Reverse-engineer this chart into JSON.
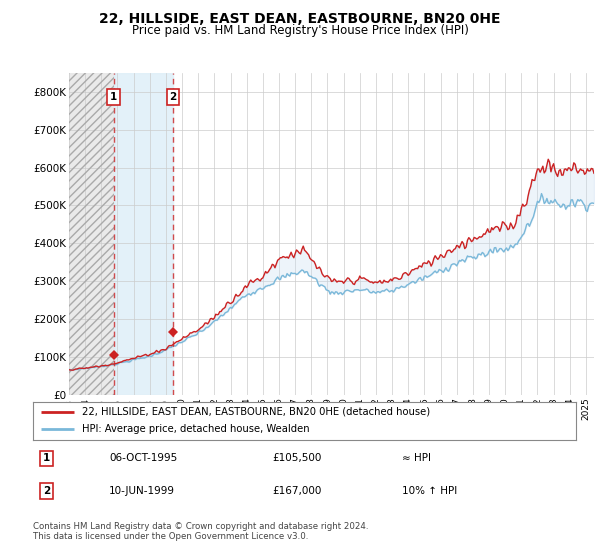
{
  "title": "22, HILLSIDE, EAST DEAN, EASTBOURNE, BN20 0HE",
  "subtitle": "Price paid vs. HM Land Registry's House Price Index (HPI)",
  "legend_line1": "22, HILLSIDE, EAST DEAN, EASTBOURNE, BN20 0HE (detached house)",
  "legend_line2": "HPI: Average price, detached house, Wealden",
  "sale1_date": "06-OCT-1995",
  "sale1_price": "£105,500",
  "sale1_hpi": "≈ HPI",
  "sale1_year": 1995.76,
  "sale1_value": 105500,
  "sale2_date": "10-JUN-1999",
  "sale2_price": "£167,000",
  "sale2_hpi": "10% ↑ HPI",
  "sale2_year": 1999.44,
  "sale2_value": 167000,
  "footer": "Contains HM Land Registry data © Crown copyright and database right 2024.\nThis data is licensed under the Open Government Licence v3.0.",
  "hpi_color": "#7ab8d9",
  "price_color": "#cc2222",
  "shade_color": "#c6dbef",
  "ylim": [
    0,
    850000
  ],
  "yticks": [
    0,
    100000,
    200000,
    300000,
    400000,
    500000,
    600000,
    700000,
    800000
  ],
  "ytick_labels": [
    "£0",
    "£100K",
    "£200K",
    "£300K",
    "£400K",
    "£500K",
    "£600K",
    "£700K",
    "£800K"
  ],
  "xmin": 1993.0,
  "xmax": 2025.5,
  "xticks": [
    1993,
    1994,
    1995,
    1996,
    1997,
    1998,
    1999,
    2000,
    2001,
    2002,
    2003,
    2004,
    2005,
    2006,
    2007,
    2008,
    2009,
    2010,
    2011,
    2012,
    2013,
    2014,
    2015,
    2016,
    2017,
    2018,
    2019,
    2020,
    2021,
    2022,
    2023,
    2024,
    2025
  ],
  "hatch_end_year": 1995.76,
  "blue_shade_start": 1995.76,
  "blue_shade_end": 1999.44
}
